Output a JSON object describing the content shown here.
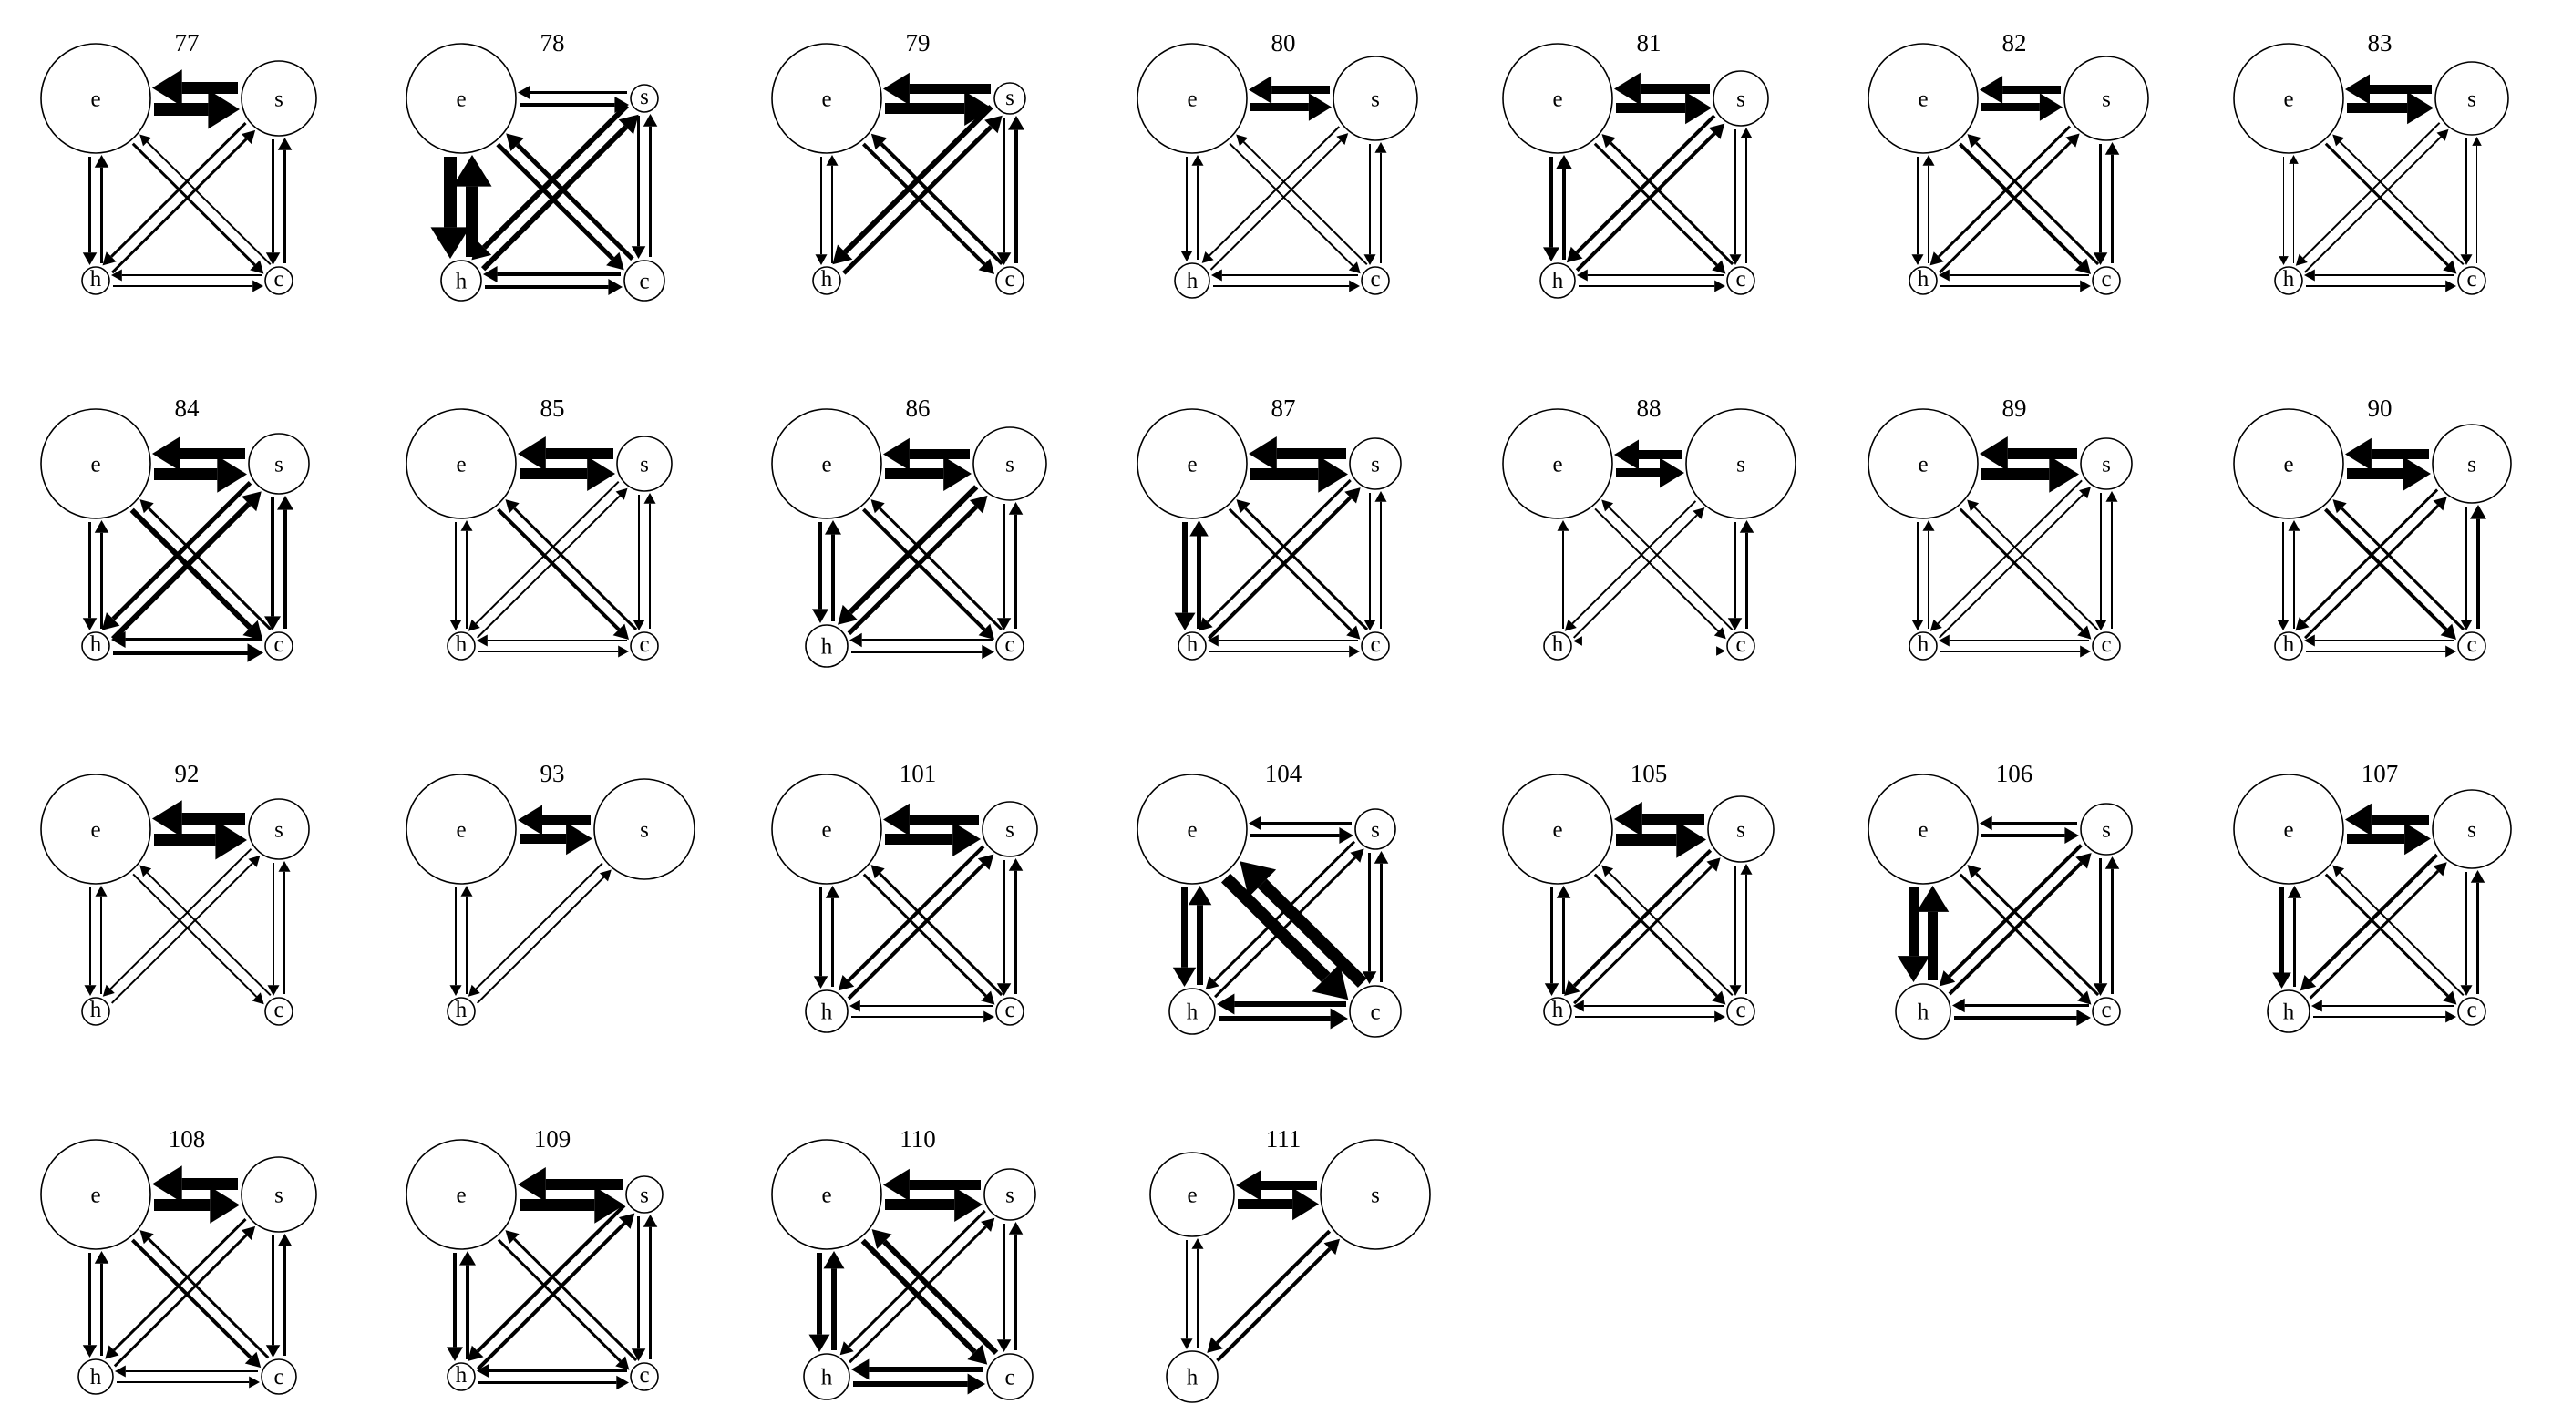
{
  "node_labels": {
    "e": "e",
    "s": "s",
    "h": "h",
    "c": "c"
  },
  "panels": [
    {
      "title": "77",
      "nodes": {
        "e": 60,
        "s": 41,
        "h": 15,
        "c": 15
      },
      "edges": {
        "es": 14,
        "se": 13,
        "eh": 3,
        "he": 3,
        "sc": 3,
        "cs": 3,
        "hc": 2,
        "ch": 2,
        "ec": 3,
        "ce": 2,
        "hs": 3,
        "sh": 3
      }
    },
    {
      "title": "78",
      "nodes": {
        "e": 60,
        "s": 15,
        "h": 22,
        "c": 22
      },
      "edges": {
        "es": 4,
        "se": 3,
        "eh": 14,
        "he": 14,
        "sc": 3,
        "cs": 3,
        "hc": 4,
        "ch": 4,
        "ec": 5,
        "ce": 5,
        "hs": 6,
        "sh": 6
      }
    },
    {
      "title": "79",
      "nodes": {
        "e": 60,
        "s": 17,
        "h": 15,
        "c": 15
      },
      "edges": {
        "es": 12,
        "se": 11,
        "eh": 2,
        "he": 2,
        "sc": 3,
        "cs": 4,
        "hc": 0,
        "ch": 0,
        "ec": 4,
        "ce": 4,
        "hs": 5,
        "sh": 6
      }
    },
    {
      "title": "80",
      "nodes": {
        "e": 60,
        "s": 46,
        "h": 19,
        "c": 15
      },
      "edges": {
        "es": 9,
        "se": 9,
        "eh": 2,
        "he": 2,
        "sc": 2,
        "cs": 2,
        "hc": 2,
        "ch": 2,
        "ec": 2,
        "ce": 2,
        "hs": 2,
        "sh": 2
      }
    },
    {
      "title": "81",
      "nodes": {
        "e": 60,
        "s": 30,
        "h": 19,
        "c": 15
      },
      "edges": {
        "es": 11,
        "se": 11,
        "eh": 4,
        "he": 4,
        "sc": 2,
        "cs": 2,
        "hc": 2,
        "ch": 2,
        "ec": 3,
        "ce": 3,
        "hs": 4,
        "sh": 4
      }
    },
    {
      "title": "82",
      "nodes": {
        "e": 60,
        "s": 46,
        "h": 15,
        "c": 15
      },
      "edges": {
        "es": 9,
        "se": 9,
        "eh": 2,
        "he": 2,
        "sc": 3,
        "cs": 3,
        "hc": 2,
        "ch": 2,
        "ec": 4,
        "ce": 3,
        "hs": 3,
        "sh": 3
      }
    },
    {
      "title": "83",
      "nodes": {
        "e": 60,
        "s": 40,
        "h": 15,
        "c": 15
      },
      "edges": {
        "es": 11,
        "se": 10,
        "eh": 1,
        "he": 1,
        "sc": 2,
        "cs": 1,
        "hc": 2,
        "ch": 2,
        "ec": 3,
        "ce": 2,
        "hs": 2,
        "sh": 2
      }
    },
    {
      "title": "84",
      "nodes": {
        "e": 60,
        "s": 33,
        "h": 15,
        "c": 15
      },
      "edges": {
        "es": 13,
        "se": 12,
        "eh": 3,
        "he": 3,
        "sc": 4,
        "cs": 4,
        "hc": 5,
        "ch": 4,
        "ec": 6,
        "ce": 3,
        "hs": 6,
        "sh": 5
      }
    },
    {
      "title": "85",
      "nodes": {
        "e": 60,
        "s": 30,
        "h": 15,
        "c": 15
      },
      "edges": {
        "es": 12,
        "se": 12,
        "eh": 2,
        "he": 2,
        "sc": 2,
        "cs": 2,
        "hc": 2,
        "ch": 2,
        "ec": 4,
        "ce": 3,
        "hs": 2,
        "sh": 2
      }
    },
    {
      "title": "86",
      "nodes": {
        "e": 60,
        "s": 40,
        "h": 23,
        "c": 15
      },
      "edges": {
        "es": 12,
        "se": 11,
        "eh": 4,
        "he": 4,
        "sc": 3,
        "cs": 3,
        "hc": 3,
        "ch": 3,
        "ec": 4,
        "ce": 3,
        "hs": 5,
        "sh": 6
      }
    },
    {
      "title": "87",
      "nodes": {
        "e": 60,
        "s": 28,
        "h": 15,
        "c": 15
      },
      "edges": {
        "es": 13,
        "se": 12,
        "eh": 6,
        "he": 5,
        "sc": 2,
        "cs": 2,
        "hc": 2,
        "ch": 2,
        "ec": 3,
        "ce": 3,
        "hs": 4,
        "sh": 3
      }
    },
    {
      "title": "88",
      "nodes": {
        "e": 60,
        "s": 60,
        "h": 15,
        "c": 15
      },
      "edges": {
        "es": 10,
        "se": 10,
        "eh": 0,
        "he": 2,
        "sc": 3,
        "cs": 3,
        "hc": 1,
        "ch": 1,
        "ec": 2,
        "ce": 2,
        "hs": 2,
        "sh": 2
      }
    },
    {
      "title": "89",
      "nodes": {
        "e": 60,
        "s": 28,
        "h": 15,
        "c": 15
      },
      "edges": {
        "es": 13,
        "se": 12,
        "eh": 2,
        "he": 2,
        "sc": 2,
        "cs": 2,
        "hc": 2,
        "ch": 2,
        "ec": 3,
        "ce": 2,
        "hs": 2,
        "sh": 2
      }
    },
    {
      "title": "90",
      "nodes": {
        "e": 60,
        "s": 43,
        "h": 15,
        "c": 15
      },
      "edges": {
        "es": 12,
        "se": 11,
        "eh": 2,
        "he": 2,
        "sc": 2,
        "cs": 4,
        "hc": 2,
        "ch": 2,
        "ec": 4,
        "ce": 3,
        "hs": 3,
        "sh": 3
      }
    },
    {
      "title": "92",
      "nodes": {
        "e": 60,
        "s": 33,
        "h": 15,
        "c": 15
      },
      "edges": {
        "es": 14,
        "se": 13,
        "eh": 2,
        "he": 2,
        "sc": 2,
        "cs": 2,
        "hc": 0,
        "ch": 0,
        "ec": 2,
        "ce": 2,
        "hs": 2,
        "sh": 2
      }
    },
    {
      "title": "93",
      "nodes": {
        "e": 60,
        "s": 55,
        "h": 15,
        "c": 0
      },
      "edges": {
        "es": 11,
        "se": 10,
        "eh": 2,
        "he": 2,
        "sc": 0,
        "cs": 0,
        "hc": 0,
        "ch": 0,
        "ec": 0,
        "ce": 0,
        "hs": 2,
        "sh": 2
      }
    },
    {
      "title": "101",
      "nodes": {
        "e": 60,
        "s": 30,
        "h": 23,
        "c": 15
      },
      "edges": {
        "es": 12,
        "se": 11,
        "eh": 3,
        "he": 3,
        "sc": 3,
        "cs": 3,
        "hc": 2,
        "ch": 2,
        "ec": 3,
        "ce": 3,
        "hs": 4,
        "sh": 4
      }
    },
    {
      "title": "104",
      "nodes": {
        "e": 60,
        "s": 22,
        "h": 25,
        "c": 28
      },
      "edges": {
        "es": 4,
        "se": 3,
        "eh": 7,
        "he": 7,
        "sc": 3,
        "cs": 3,
        "hc": 6,
        "ch": 6,
        "ec": 14,
        "ce": 14,
        "hs": 3,
        "sh": 3
      }
    },
    {
      "title": "105",
      "nodes": {
        "e": 60,
        "s": 36,
        "h": 15,
        "c": 15
      },
      "edges": {
        "es": 13,
        "se": 12,
        "eh": 3,
        "he": 3,
        "sc": 2,
        "cs": 2,
        "hc": 2,
        "ch": 2,
        "ec": 3,
        "ce": 2,
        "hs": 3,
        "sh": 4
      }
    },
    {
      "title": "106",
      "nodes": {
        "e": 60,
        "s": 28,
        "h": 30,
        "c": 15
      },
      "edges": {
        "es": 4,
        "se": 3,
        "eh": 11,
        "he": 11,
        "sc": 3,
        "cs": 3,
        "hc": 4,
        "ch": 3,
        "ec": 3,
        "ce": 3,
        "hs": 4,
        "sh": 4
      }
    },
    {
      "title": "107",
      "nodes": {
        "e": 60,
        "s": 43,
        "h": 23,
        "c": 15
      },
      "edges": {
        "es": 11,
        "se": 11,
        "eh": 5,
        "he": 3,
        "sc": 2,
        "cs": 3,
        "hc": 2,
        "ch": 2,
        "ec": 3,
        "ce": 2,
        "hs": 3,
        "sh": 4
      }
    },
    {
      "title": "108",
      "nodes": {
        "e": 60,
        "s": 41,
        "h": 19,
        "c": 19
      },
      "edges": {
        "es": 13,
        "se": 13,
        "eh": 3,
        "he": 3,
        "sc": 3,
        "cs": 3,
        "hc": 2,
        "ch": 2,
        "ec": 4,
        "ce": 3,
        "hs": 3,
        "sh": 3
      }
    },
    {
      "title": "109",
      "nodes": {
        "e": 60,
        "s": 20,
        "h": 15,
        "c": 15
      },
      "edges": {
        "es": 13,
        "se": 12,
        "eh": 4,
        "he": 4,
        "sc": 3,
        "cs": 3,
        "hc": 3,
        "ch": 3,
        "ec": 3,
        "ce": 3,
        "hs": 4,
        "sh": 4
      }
    },
    {
      "title": "110",
      "nodes": {
        "e": 60,
        "s": 28,
        "h": 25,
        "c": 25
      },
      "edges": {
        "es": 12,
        "se": 11,
        "eh": 6,
        "he": 6,
        "sc": 3,
        "cs": 3,
        "hc": 6,
        "ch": 6,
        "ec": 6,
        "ce": 6,
        "hs": 3,
        "sh": 3
      }
    },
    {
      "title": "111",
      "nodes": {
        "e": 46,
        "s": 60,
        "h": 28,
        "c": 0
      },
      "edges": {
        "es": 11,
        "se": 10,
        "eh": 2,
        "he": 2,
        "sc": 0,
        "cs": 0,
        "hc": 0,
        "ch": 0,
        "ec": 0,
        "ce": 0,
        "hs": 4,
        "sh": 4
      }
    }
  ]
}
